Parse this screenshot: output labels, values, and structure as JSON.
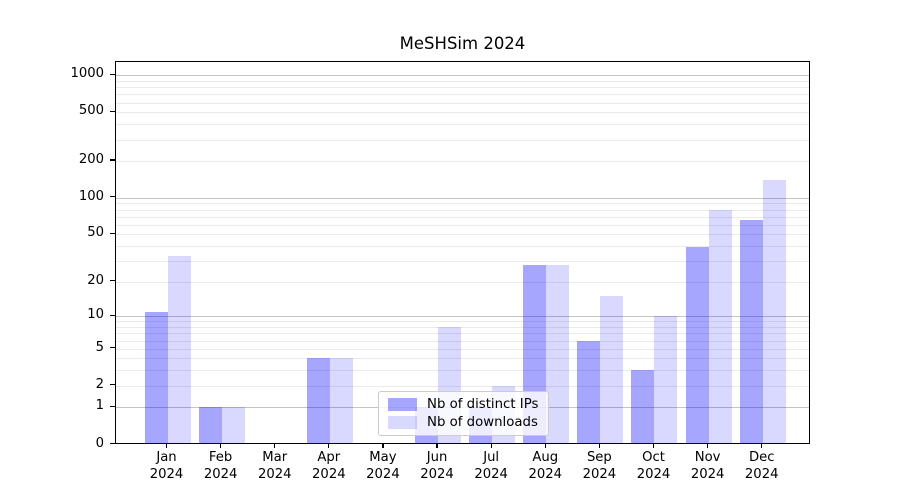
{
  "chart_data": {
    "type": "bar",
    "title": "MeSHSim 2024",
    "categories": [
      "Jan",
      "Feb",
      "Mar",
      "Apr",
      "May",
      "Jun",
      "Jul",
      "Aug",
      "Sep",
      "Oct",
      "Nov",
      "Dec"
    ],
    "category_year": "2024",
    "series": [
      {
        "name": "Nb of distinct IPs",
        "color": "rgba(0,0,255,0.35)",
        "color_hex_on_white": "#a6a6ff",
        "values": [
          11,
          1,
          0,
          4,
          0,
          1,
          1,
          28,
          6,
          3,
          39,
          66
        ]
      },
      {
        "name": "Nb of downloads",
        "color": "rgba(0,0,255,0.15)",
        "color_hex_on_white": "#d9d9ff",
        "values": [
          33,
          1,
          0,
          4,
          0,
          8,
          2,
          28,
          15,
          10,
          80,
          140
        ]
      }
    ],
    "xlabel": "",
    "ylabel": "",
    "y_scale": "symlog (log10 of 1+y)",
    "yticks": [
      1000,
      500,
      200,
      100,
      50,
      20,
      10,
      5,
      2,
      1,
      0
    ],
    "ylim": [
      0,
      1270
    ],
    "grid": "horizontal, major (1,10,100,1000) + minor log subs",
    "legend_position": "lower center",
    "major_grid_color": "#c4c4c4",
    "minor_grid_color": "#eaeaea",
    "background_color": "#ffffff"
  }
}
